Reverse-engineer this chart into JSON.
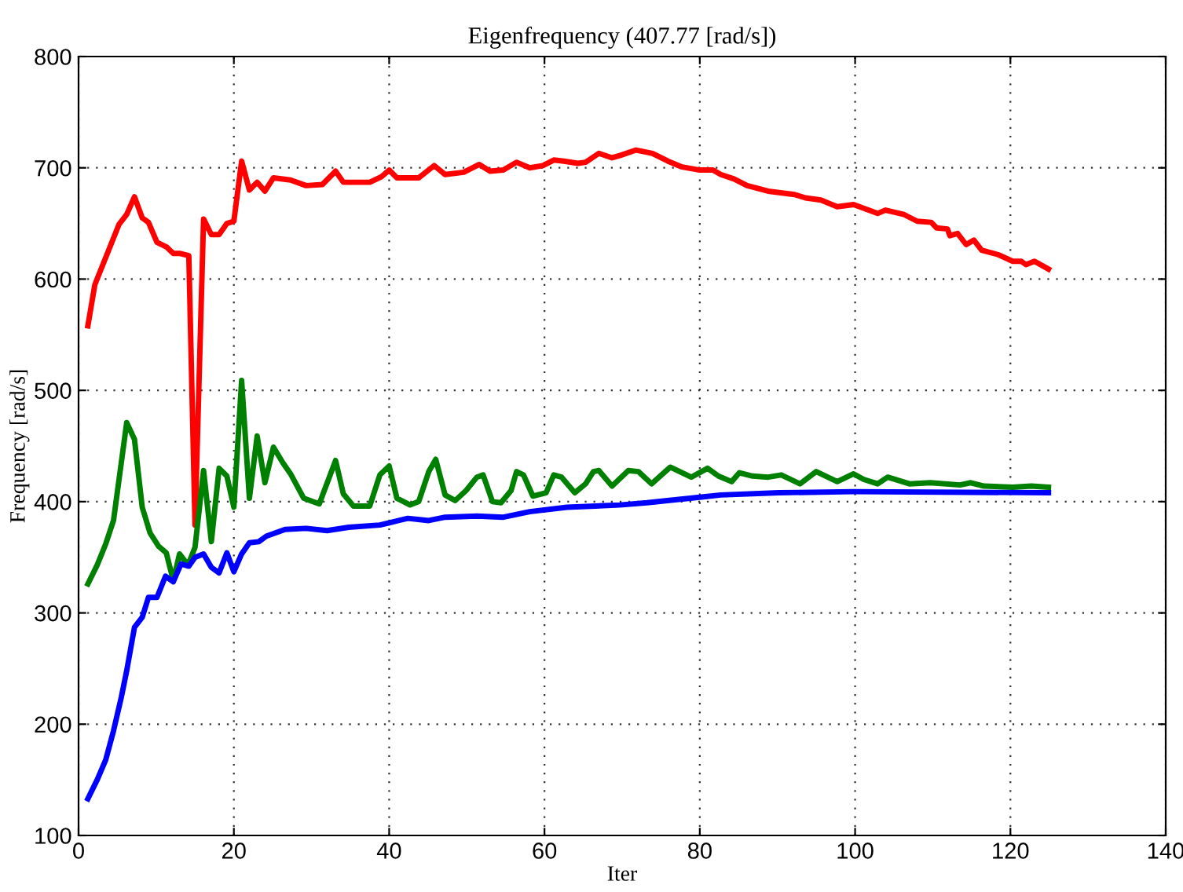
{
  "chart_data": {
    "type": "line",
    "title": "Eigenfrequency (407.77 [rad/s])",
    "xlabel": "Iter",
    "ylabel": "Frequency [rad/s]",
    "xlim": [
      0,
      140
    ],
    "xticks": [
      0,
      20,
      40,
      60,
      80,
      100,
      120,
      140
    ],
    "ylim": [
      100,
      800
    ],
    "yticks": [
      100,
      200,
      300,
      400,
      500,
      600,
      700,
      800
    ],
    "grid": true,
    "legend": false,
    "line_style": "solid",
    "marker": "none",
    "series": [
      {
        "color": "#ff0000",
        "x": [
          1.2,
          2.1,
          5.2,
          6.2,
          7.2,
          8.2,
          9,
          10.1,
          11.3,
          12.2,
          13.1,
          14.2,
          15,
          16.1,
          17.1,
          18.1,
          19.1,
          20,
          21,
          22,
          23,
          24,
          25.1,
          27.3,
          29.3,
          31.4,
          33.1,
          34.1,
          37.5,
          39,
          40,
          41,
          43.8,
          45.8,
          47.2,
          49.6,
          51.6,
          53,
          54.7,
          56.4,
          58.1,
          59.8,
          61.2,
          62.5,
          64.3,
          65.3,
          67,
          68.7,
          69.7,
          71.8,
          73.9,
          75.9,
          77.6,
          80,
          81.7,
          82.7,
          84.4,
          86.1,
          88.8,
          92.2,
          93.6,
          95.6,
          97.7,
          99.8,
          102.9,
          103.9,
          106.3,
          108,
          109.8,
          110.5,
          111.9,
          112.2,
          113.2,
          114.3,
          115.3,
          116.3,
          118.4,
          120.3,
          121.4,
          122,
          123.1,
          124.9
        ],
        "values": [
          558,
          595,
          649,
          658,
          674,
          655,
          651,
          633,
          629,
          623,
          623,
          621,
          379,
          654,
          640,
          640,
          650,
          652,
          706,
          680,
          687,
          679,
          691,
          689,
          684,
          685,
          697,
          687,
          687,
          692,
          698,
          691,
          691,
          702,
          694,
          696,
          703,
          697,
          698,
          705,
          700,
          702,
          707,
          706,
          704,
          705,
          713,
          709,
          711,
          716,
          713,
          706,
          701,
          698,
          698,
          694,
          690,
          684,
          679,
          676,
          673,
          671,
          665,
          667,
          659,
          662,
          658,
          652,
          651,
          646,
          645,
          639,
          641,
          631,
          635,
          626,
          622,
          616,
          616,
          613,
          616,
          609
        ]
      },
      {
        "color": "#008000",
        "x": [
          1.2,
          2.4,
          3.5,
          4.5,
          6.2,
          7.2,
          8.2,
          9.2,
          10.3,
          11.3,
          12.2,
          13,
          14.1,
          15,
          16.1,
          17.1,
          18.1,
          19.1,
          20,
          21,
          22,
          23,
          24,
          25.1,
          26.3,
          27.3,
          29,
          31,
          33.1,
          34.1,
          35.4,
          37.5,
          38.8,
          40,
          41,
          42.7,
          43.8,
          45.1,
          46,
          47.2,
          48.5,
          49.9,
          51.3,
          52.1,
          53.3,
          54.4,
          55.7,
          56.4,
          57.3,
          58.5,
          60.2,
          61.2,
          62.2,
          63.9,
          65.3,
          66.3,
          67,
          68.7,
          70.8,
          72.1,
          73.8,
          76.2,
          78.9,
          81,
          82.4,
          84.1,
          85.1,
          86.8,
          88.8,
          90.5,
          92.9,
          95,
          97.7,
          99.8,
          101.1,
          102.9,
          104.2,
          107,
          109.7,
          113.5,
          114.9,
          116.6,
          120.3,
          122.7,
          124.9
        ],
        "values": [
          326,
          343,
          362,
          383,
          471,
          456,
          395,
          372,
          360,
          354,
          329,
          353,
          343,
          359,
          428,
          364,
          430,
          423,
          395,
          509,
          403,
          459,
          417,
          449,
          435,
          425,
          403,
          398,
          437,
          407,
          396,
          396,
          424,
          432,
          403,
          397,
          400,
          427,
          438,
          406,
          401,
          410,
          422,
          424,
          400,
          399,
          410,
          427,
          424,
          405,
          408,
          424,
          422,
          408,
          416,
          427,
          428,
          414,
          428,
          427,
          416,
          431,
          422,
          430,
          423,
          418,
          426,
          423,
          422,
          424,
          416,
          427,
          418,
          425,
          420,
          416,
          422,
          416,
          417,
          415,
          417,
          414,
          413,
          414,
          413
        ]
      },
      {
        "color": "#0000ff",
        "x": [
          1.2,
          2.4,
          3.5,
          4.5,
          5.5,
          6.2,
          7.2,
          8.2,
          9,
          10.1,
          11.2,
          12.2,
          13.2,
          14.2,
          15,
          16.1,
          17.1,
          18.1,
          19.1,
          20,
          21,
          22,
          23.2,
          24.2,
          26.6,
          29.3,
          32,
          34.8,
          38.8,
          40,
          42.4,
          45.1,
          47.2,
          51.3,
          54.7,
          58.1,
          62.9,
          69.7,
          73.2,
          77.3,
          80,
          82.7,
          90.2,
          99.8,
          124.9
        ],
        "values": [
          133,
          150,
          168,
          194,
          224,
          248,
          287,
          296,
          314,
          314,
          333,
          328,
          344,
          342,
          350,
          353,
          341,
          336,
          354,
          337,
          353,
          363,
          364,
          369,
          375,
          376,
          374,
          377,
          379,
          381,
          385,
          383,
          386,
          387,
          386,
          391,
          395,
          397,
          399,
          402,
          404,
          406,
          408,
          409,
          408
        ]
      }
    ]
  }
}
